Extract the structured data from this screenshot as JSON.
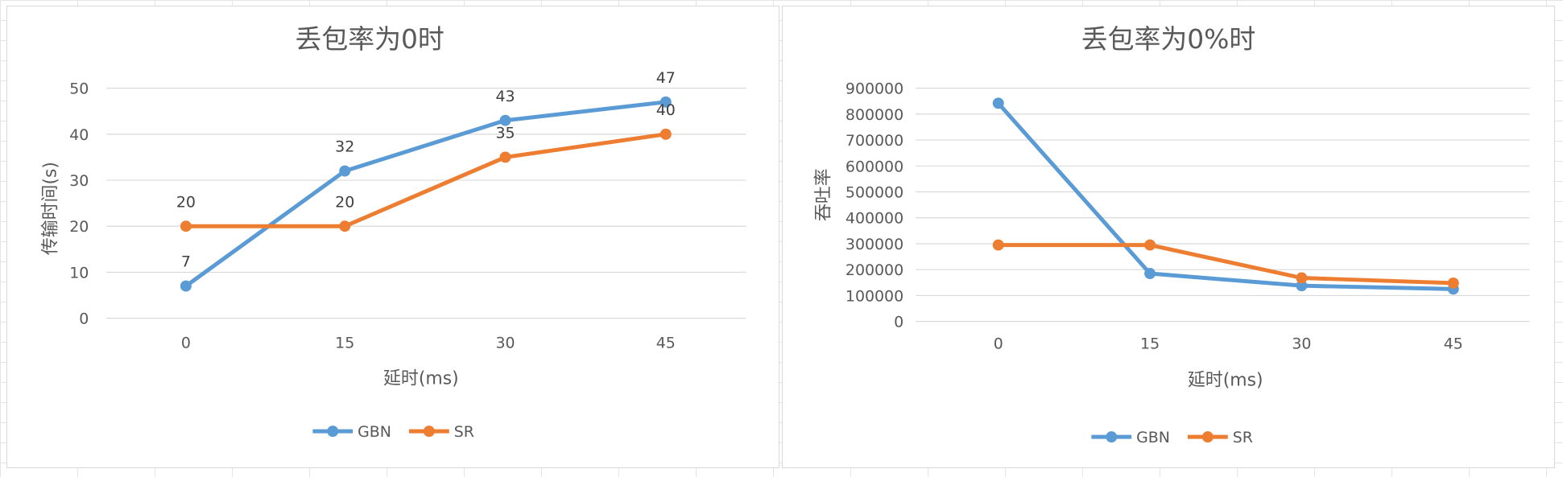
{
  "chart_data": [
    {
      "type": "line",
      "title": "丢包率为0时",
      "xlabel": "延时(ms)",
      "ylabel": "传输时间(s)",
      "categories": [
        "0",
        "15",
        "30",
        "45"
      ],
      "yticks": [
        "0",
        "10",
        "20",
        "30",
        "40",
        "50"
      ],
      "ylim": [
        0,
        50
      ],
      "grid": true,
      "legend": "bottom",
      "data_labels": true,
      "series": [
        {
          "name": "GBN",
          "values": [
            7,
            32,
            43,
            47
          ],
          "color": "#5b9bd5"
        },
        {
          "name": "SR",
          "values": [
            20,
            20,
            35,
            40
          ],
          "color": "#ed7d31"
        }
      ]
    },
    {
      "type": "line",
      "title": "丢包率为0%时",
      "xlabel": "延时(ms)",
      "ylabel": "吞吐率",
      "categories": [
        "0",
        "15",
        "30",
        "45"
      ],
      "yticks": [
        "0",
        "100000",
        "200000",
        "300000",
        "400000",
        "500000",
        "600000",
        "700000",
        "800000",
        "900000"
      ],
      "ylim": [
        0,
        900000
      ],
      "grid": true,
      "legend": "bottom",
      "data_labels": false,
      "series": [
        {
          "name": "GBN",
          "values": [
            842000,
            185000,
            138000,
            125000
          ],
          "color": "#5b9bd5"
        },
        {
          "name": "SR",
          "values": [
            295000,
            295000,
            168000,
            148000
          ],
          "color": "#ed7d31"
        }
      ]
    }
  ]
}
